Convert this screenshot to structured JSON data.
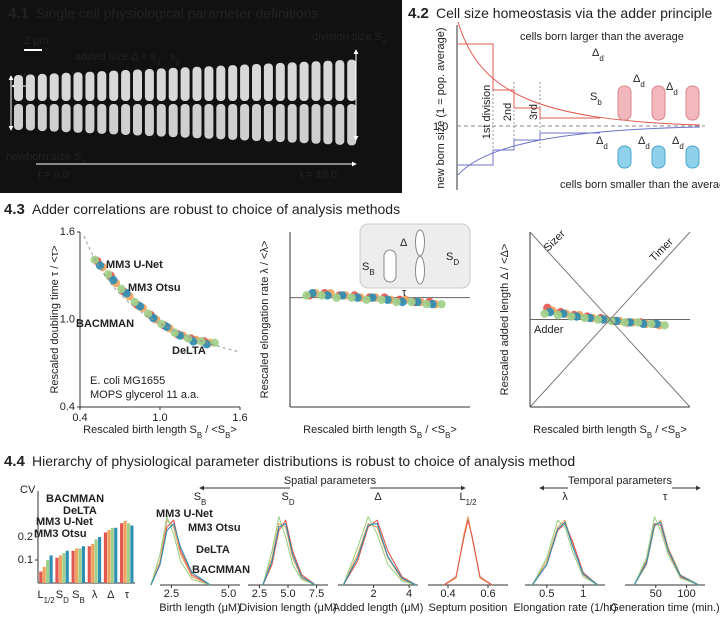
{
  "panels": {
    "p41": {
      "number": "4.1",
      "title": "Single cell physiological parameter definitions",
      "scale": "2 μm",
      "added": [
        "added size Δ = s",
        "d",
        " - s",
        "b"
      ],
      "division": [
        "division size S",
        "d"
      ],
      "width": "W",
      "newborn": [
        "newborn size S",
        "b"
      ],
      "t0": "t = 0.0'",
      "t1": "t = 18.0'"
    },
    "p42": {
      "number": "4.2",
      "title": "Cell size homeostasis via the adder principle",
      "ylabel": "new born size (1 = pop. average)",
      "one": "1.0",
      "div1": "1st division",
      "div2": "2nd",
      "div3": "3rd",
      "larger": "cells born larger than the average",
      "smaller": "cells born smaller than the average",
      "sb": [
        "S",
        "b"
      ],
      "delta": [
        "Δ",
        "d"
      ]
    },
    "p43": {
      "number": "4.3",
      "title": "Adder correlations are robust to choice of analysis methods",
      "strain": "E. coli MG1655",
      "medium": "MOPS glycerol 11 a.a.",
      "inset": {
        "delta": "Δ",
        "sb": [
          "S",
          "B"
        ],
        "tau": "τ",
        "sd": [
          "S",
          "D"
        ]
      },
      "sizer": "Sizer",
      "timer": "Timer",
      "adder": "Adder"
    },
    "p44": {
      "number": "4.4",
      "title": "Hierarchy of physiological parameter distributions is robust to choice of analysis method",
      "spatial": "Spatial parameters",
      "temporal": "Temporal parameters"
    }
  },
  "chart_data": [
    {
      "type": "scatter",
      "xlabel": [
        "Rescaled birth length S",
        "B",
        " / <S",
        "B",
        ">"
      ],
      "ylabel": "Rescaled doubling time τ / <τ>",
      "xlim": [
        0.4,
        1.6
      ],
      "ylim": [
        0.4,
        1.6
      ],
      "xticks": [
        0.4,
        {
          "value": 1,
          "label": "1.0"
        },
        1.6
      ],
      "yticks": [
        0.4,
        {
          "value": 1,
          "label": "1.0"
        },
        1.6
      ],
      "series": [
        {
          "name": "MM3 U-Net",
          "color": "#f0a35e",
          "x": [
            0.57,
            0.67,
            0.77,
            0.87,
            0.97,
            1.07,
            1.17,
            1.27,
            1.37
          ],
          "values": [
            1.36,
            1.25,
            1.16,
            1.08,
            1.0,
            0.94,
            0.89,
            0.86,
            0.84
          ]
        },
        {
          "name": "MM3 Otsu",
          "color": "#e0584f",
          "x": [
            0.53,
            0.63,
            0.73,
            0.83,
            0.93,
            1.03,
            1.13,
            1.23,
            1.33
          ],
          "values": [
            1.4,
            1.3,
            1.19,
            1.1,
            1.03,
            0.96,
            0.9,
            0.87,
            0.85
          ]
        },
        {
          "name": "BACMMAN",
          "color": "#2f8fb3",
          "x": [
            0.55,
            0.65,
            0.75,
            0.85,
            0.95,
            1.05,
            1.15,
            1.25,
            1.35
          ],
          "values": [
            1.37,
            1.27,
            1.18,
            1.09,
            1.01,
            0.95,
            0.89,
            0.85,
            0.83
          ]
        },
        {
          "name": "DeLTA",
          "color": "#9fd08a",
          "x": [
            0.51,
            0.61,
            0.71,
            0.81,
            0.91,
            1.01,
            1.11,
            1.21,
            1.31,
            1.41
          ],
          "values": [
            1.41,
            1.31,
            1.21,
            1.12,
            1.04,
            0.97,
            0.91,
            0.87,
            0.85,
            0.84
          ]
        }
      ]
    },
    {
      "type": "scatter",
      "xlabel": [
        "Rescaled birth length S",
        "B",
        " / <S",
        "B",
        ">"
      ],
      "ylabel": "Rescaled elongation rate λ / <λ>",
      "xlim": [
        0.4,
        1.6
      ],
      "ylim": [
        0.5,
        1.3
      ],
      "hline": 1,
      "series": [
        {
          "color": "#f0a35e",
          "x": [
            0.57,
            0.67,
            0.77,
            0.87,
            0.97,
            1.07,
            1.17,
            1.27,
            1.37
          ],
          "values": [
            1.02,
            1.02,
            1.01,
            1.0,
            1.0,
            0.99,
            0.99,
            0.98,
            0.97
          ]
        },
        {
          "color": "#e0584f",
          "x": [
            0.53,
            0.63,
            0.73,
            0.83,
            0.93,
            1.03,
            1.13,
            1.23,
            1.33
          ],
          "values": [
            1.01,
            1.02,
            1.01,
            1.01,
            1.0,
            1.0,
            0.99,
            0.98,
            0.98
          ]
        },
        {
          "color": "#2f8fb3",
          "x": [
            0.55,
            0.65,
            0.75,
            0.85,
            0.95,
            1.05,
            1.15,
            1.25,
            1.35
          ],
          "values": [
            1.02,
            1.01,
            1.01,
            1.0,
            1.0,
            0.99,
            0.98,
            0.98,
            0.97
          ]
        },
        {
          "color": "#9fd08a",
          "x": [
            0.51,
            0.61,
            0.71,
            0.81,
            0.91,
            1.01,
            1.11,
            1.21,
            1.31,
            1.41
          ],
          "values": [
            1.01,
            1.01,
            1.0,
            1.0,
            0.99,
            0.99,
            0.98,
            0.98,
            0.97,
            0.97
          ]
        }
      ]
    },
    {
      "type": "scatter",
      "xlabel": [
        "Rescaled birth length S",
        "B",
        " / <S",
        "B",
        ">"
      ],
      "ylabel": "Rescaled added length Δ / <Δ>",
      "xlim": [
        0.4,
        1.6
      ],
      "ylim": [
        0.4,
        1.6
      ],
      "hline": 1,
      "series": [
        {
          "color": "#f0a35e",
          "x": [
            0.57,
            0.67,
            0.77,
            0.87,
            0.97,
            1.07,
            1.17,
            1.27,
            1.37
          ],
          "values": [
            1.06,
            1.04,
            1.03,
            1.01,
            1.0,
            0.99,
            0.98,
            0.97,
            0.96
          ]
        },
        {
          "color": "#e0584f",
          "x": [
            0.53,
            0.63,
            0.73,
            0.83,
            0.93,
            1.03,
            1.13,
            1.23,
            1.33
          ],
          "values": [
            1.08,
            1.05,
            1.03,
            1.02,
            1.01,
            0.99,
            0.98,
            0.98,
            0.97
          ]
        },
        {
          "color": "#2f8fb3",
          "x": [
            0.55,
            0.65,
            0.75,
            0.85,
            0.95,
            1.05,
            1.15,
            1.25,
            1.35
          ],
          "values": [
            1.05,
            1.04,
            1.02,
            1.01,
            1.0,
            0.99,
            0.98,
            0.97,
            0.97
          ]
        },
        {
          "color": "#9fd08a",
          "x": [
            0.51,
            0.61,
            0.71,
            0.81,
            0.91,
            1.01,
            1.11,
            1.21,
            1.31,
            1.41
          ],
          "values": [
            1.04,
            1.03,
            1.02,
            1.01,
            1.0,
            0.99,
            0.98,
            0.98,
            0.97,
            0.96
          ]
        }
      ]
    },
    {
      "type": "bar",
      "ylabel": "CV",
      "categories": [
        [
          "L",
          "1/2"
        ],
        [
          "S",
          "D"
        ],
        [
          "S",
          "B"
        ],
        "λ",
        "Δ",
        "τ"
      ],
      "ylim": [
        0,
        0.4
      ],
      "yticks": [
        0.1,
        0.2
      ],
      "series": [
        {
          "name": "MM3 Otsu",
          "color": "#e0584f",
          "values": [
            0.05,
            0.11,
            0.14,
            0.16,
            0.22,
            0.26
          ]
        },
        {
          "name": "MM3 U-Net",
          "color": "#f0a35e",
          "values": [
            0.07,
            0.12,
            0.15,
            0.17,
            0.23,
            0.27
          ]
        },
        {
          "name": "DeLTA",
          "color": "#9fd08a",
          "values": [
            0.1,
            0.13,
            0.15,
            0.19,
            0.24,
            0.26
          ]
        },
        {
          "name": "BACMMAN",
          "color": "#2f8fb3",
          "values": [
            0.12,
            0.14,
            0.16,
            0.2,
            0.24,
            0.25
          ]
        }
      ]
    },
    {
      "type": "line",
      "title": [
        "S",
        "B"
      ],
      "xlabel": "Birth length (μM)",
      "xlim": [
        2,
        5.5
      ],
      "ylim": [
        0,
        1.1
      ],
      "xticks": [
        2.5,
        {
          "value": 5,
          "label": "5.0"
        }
      ],
      "x": [
        1.6,
        2.0,
        2.3,
        2.6,
        2.9,
        3.4,
        4.2
      ],
      "series": [
        {
          "name": "MM3 U-Net",
          "color": "#f0a35e",
          "values": [
            0,
            0.35,
            0.95,
            0.85,
            0.45,
            0.12,
            0
          ]
        },
        {
          "name": "MM3 Otsu",
          "color": "#e0584f",
          "values": [
            0,
            0.3,
            0.85,
            0.95,
            0.5,
            0.15,
            0
          ]
        },
        {
          "name": "DeLTA",
          "color": "#9fd08a",
          "values": [
            0,
            0.45,
            1.0,
            0.75,
            0.35,
            0.08,
            0
          ]
        },
        {
          "name": "BACMMAN",
          "color": "#2f8fb3",
          "values": [
            0,
            0.3,
            0.8,
            0.9,
            0.55,
            0.18,
            0
          ]
        }
      ]
    },
    {
      "type": "line",
      "title": [
        "S",
        "D"
      ],
      "xlabel": "Division length (μM)",
      "xlim": [
        1.5,
        8.5
      ],
      "ylim": [
        0,
        1.1
      ],
      "xticks": [
        2.5,
        {
          "value": 5,
          "label": "5.0"
        },
        7.5
      ],
      "x": [
        2.8,
        3.6,
        4.2,
        4.8,
        5.4,
        6.2,
        7.4
      ],
      "series": [
        {
          "color": "#f0a35e",
          "values": [
            0,
            0.4,
            0.9,
            0.85,
            0.4,
            0.1,
            0
          ]
        },
        {
          "color": "#e0584f",
          "values": [
            0,
            0.3,
            0.8,
            0.95,
            0.5,
            0.15,
            0
          ]
        },
        {
          "color": "#9fd08a",
          "values": [
            0,
            0.5,
            1.0,
            0.7,
            0.3,
            0.08,
            0
          ]
        },
        {
          "color": "#2f8fb3",
          "values": [
            0,
            0.35,
            0.85,
            0.9,
            0.45,
            0.12,
            0
          ]
        }
      ]
    },
    {
      "type": "line",
      "title": "Δ",
      "xlabel": "Added length (μM)",
      "xlim": [
        0,
        4.5
      ],
      "ylim": [
        0,
        1.1
      ],
      "xticks": [
        2,
        4
      ],
      "x": [
        0.3,
        1.1,
        1.7,
        2.2,
        2.8,
        3.6,
        4.4
      ],
      "series": [
        {
          "color": "#f0a35e",
          "values": [
            0,
            0.45,
            0.9,
            0.85,
            0.4,
            0.08,
            0
          ]
        },
        {
          "color": "#e0584f",
          "values": [
            0,
            0.35,
            0.85,
            0.95,
            0.5,
            0.12,
            0
          ]
        },
        {
          "color": "#9fd08a",
          "values": [
            0,
            0.55,
            1.0,
            0.75,
            0.3,
            0.06,
            0
          ]
        },
        {
          "color": "#2f8fb3",
          "values": [
            0,
            0.4,
            0.88,
            0.9,
            0.42,
            0.1,
            0
          ]
        }
      ]
    },
    {
      "type": "line",
      "title": [
        "L",
        "1/2"
      ],
      "xlabel": "Septum position",
      "xlim": [
        0.3,
        0.7
      ],
      "ylim": [
        0,
        1.1
      ],
      "xticks": [
        0.4,
        0.6
      ],
      "x": [
        0.38,
        0.44,
        0.48,
        0.5,
        0.52,
        0.56,
        0.62
      ],
      "series": [
        {
          "color": "#f0a35e",
          "values": [
            0,
            0.1,
            0.75,
            1.0,
            0.7,
            0.1,
            0
          ]
        },
        {
          "color": "#e0584f",
          "values": [
            0,
            0.12,
            0.7,
            0.95,
            0.72,
            0.12,
            0
          ]
        }
      ]
    },
    {
      "type": "line",
      "title": "λ",
      "xlabel": "Elongation rate (1/hr)",
      "xlim": [
        0.2,
        1.3
      ],
      "ylim": [
        0,
        1.1
      ],
      "xticks": [
        0.5,
        1
      ],
      "x": [
        0.3,
        0.5,
        0.65,
        0.75,
        0.85,
        1.0,
        1.2
      ],
      "series": [
        {
          "color": "#f0a35e",
          "values": [
            0,
            0.35,
            0.85,
            0.95,
            0.6,
            0.15,
            0
          ]
        },
        {
          "color": "#e0584f",
          "values": [
            0,
            0.3,
            0.8,
            0.9,
            0.65,
            0.18,
            0
          ]
        },
        {
          "color": "#9fd08a",
          "values": [
            0,
            0.4,
            0.95,
            0.85,
            0.5,
            0.12,
            0
          ]
        },
        {
          "color": "#2f8fb3",
          "values": [
            0,
            0.3,
            0.82,
            0.92,
            0.58,
            0.16,
            0
          ]
        }
      ]
    },
    {
      "type": "line",
      "title": "τ",
      "xlabel": "Generation time (min.)",
      "xlim": [
        0,
        130
      ],
      "ylim": [
        0,
        1.1
      ],
      "xticks": [
        50,
        100
      ],
      "x": [
        15,
        35,
        48,
        58,
        70,
        90,
        120
      ],
      "series": [
        {
          "color": "#f0a35e",
          "values": [
            0,
            0.3,
            0.85,
            0.95,
            0.55,
            0.15,
            0
          ]
        },
        {
          "color": "#e0584f",
          "values": [
            0,
            0.35,
            0.9,
            0.88,
            0.5,
            0.12,
            0
          ]
        },
        {
          "color": "#9fd08a",
          "values": [
            0,
            0.4,
            1.0,
            0.8,
            0.45,
            0.1,
            0
          ]
        },
        {
          "color": "#2f8fb3",
          "values": [
            0,
            0.32,
            0.88,
            0.92,
            0.52,
            0.14,
            0
          ]
        }
      ]
    }
  ]
}
